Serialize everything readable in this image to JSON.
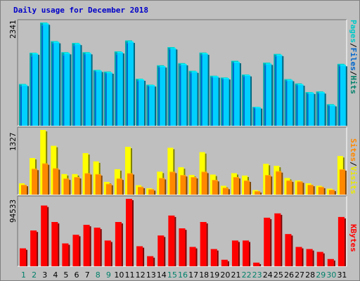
{
  "title": "Daily usage for December 2018",
  "colors": {
    "background": "#c0c0c0",
    "panel": "#bfbfbf",
    "hits": "#00d0ff",
    "files": "#0066cc",
    "pages": "#00c8c8",
    "visits": "#ffff00",
    "sites": "#ff8800",
    "kbytes": "#ff0000",
    "weekday": "#000000",
    "weekend": "#00806a",
    "title": "#0000c8"
  },
  "legend": {
    "panel1": [
      {
        "text": "Pages",
        "color": "#00c8c8"
      },
      {
        "text": "/",
        "color": "#000000"
      },
      {
        "text": "Files",
        "color": "#0066cc"
      },
      {
        "text": "/",
        "color": "#000000"
      },
      {
        "text": "Hits",
        "color": "#00806a"
      }
    ],
    "panel2": [
      {
        "text": "Sites",
        "color": "#ff8800"
      },
      {
        "text": "/",
        "color": "#000000"
      },
      {
        "text": "Visits",
        "color": "#e8e800"
      }
    ],
    "panel3": [
      {
        "text": "KBytes",
        "color": "#ff0000"
      }
    ]
  },
  "chart_data": {
    "type": "bar",
    "title": "Daily usage for December 2018",
    "categories": [
      1,
      2,
      3,
      4,
      5,
      6,
      7,
      8,
      9,
      10,
      11,
      12,
      13,
      14,
      15,
      16,
      17,
      18,
      19,
      20,
      21,
      22,
      23,
      24,
      25,
      26,
      27,
      28,
      29,
      30,
      31
    ],
    "weekend_days": [
      1,
      2,
      8,
      9,
      15,
      16,
      22,
      23,
      29,
      30
    ],
    "panels": [
      {
        "name": "hits-files-pages",
        "ymax_label": "2341",
        "ylim": [
          0,
          2341
        ],
        "series": [
          {
            "name": "Hits",
            "values": [
              947,
              1655,
              2341,
              1917,
              1667,
              1879,
              1667,
              1266,
              1228,
              1684,
              1933,
              1067,
              930,
              1371,
              1783,
              1419,
              1245,
              1658,
              1133,
              1093,
              1473,
              1161,
              430,
              1429,
              1627,
              1056,
              958,
              763,
              777,
              488,
              1403
            ]
          },
          {
            "name": "Files",
            "values": [
              900,
              1580,
              2280,
              1870,
              1600,
              1820,
              1620,
              1230,
              1190,
              1620,
              1880,
              1020,
              900,
              1330,
              1740,
              1370,
              1200,
              1610,
              1100,
              1060,
              1430,
              1120,
              410,
              1380,
              1580,
              1020,
              920,
              730,
              740,
              460,
              1360
            ]
          },
          {
            "name": "Pages",
            "values": [
              930,
              1640,
              2320,
              1900,
              1650,
              1860,
              1650,
              1250,
              1210,
              1670,
              1910,
              1050,
              920,
              1350,
              1760,
              1400,
              1230,
              1640,
              1120,
              1080,
              1450,
              1150,
              420,
              1410,
              1610,
              1040,
              940,
              750,
              760,
              470,
              1380
            ]
          }
        ]
      },
      {
        "name": "visits-sites",
        "ymax_label": "1327",
        "ylim": [
          0,
          1327
        ],
        "series": [
          {
            "name": "Visits",
            "values": [
              230,
              750,
              1327,
              1000,
              420,
              420,
              850,
              680,
              260,
              520,
              980,
              190,
              130,
              470,
              960,
              560,
              400,
              870,
              410,
              180,
              440,
              390,
              90,
              630,
              590,
              340,
              290,
              230,
              180,
              120,
              790
            ]
          },
          {
            "name": "Sites",
            "values": [
              200,
              530,
              640,
              540,
              330,
              360,
              440,
              420,
              220,
              330,
              440,
              160,
              110,
              340,
              470,
              400,
              360,
              470,
              300,
              140,
              360,
              290,
              70,
              400,
              480,
              290,
              270,
              200,
              160,
              100,
              520
            ]
          }
        ]
      },
      {
        "name": "kbytes",
        "ymax_label": "94533",
        "ylim": [
          0,
          94533
        ],
        "series": [
          {
            "name": "KBytes",
            "values": [
              25000,
              50000,
              85000,
              62000,
              32000,
              44000,
              58000,
              54000,
              36000,
              62000,
              94533,
              28000,
              14000,
              43000,
              71000,
              53000,
              27000,
              62000,
              24000,
              9000,
              36000,
              36000,
              5000,
              68000,
              74000,
              45000,
              27000,
              24000,
              20000,
              10000,
              69000
            ]
          }
        ]
      }
    ]
  }
}
